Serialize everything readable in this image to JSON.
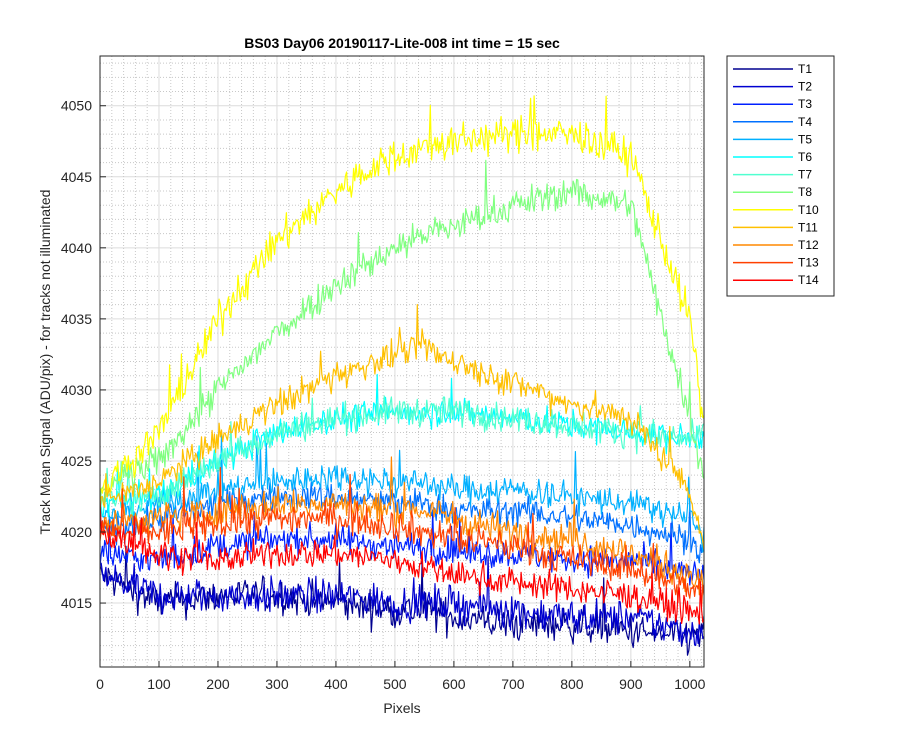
{
  "chart_data": {
    "type": "line",
    "title": "BS03 Day06 20190117-Lite-008 int time = 15 sec",
    "xlabel": "Pixels",
    "ylabel": "Track Mean Signal (ADU/pix) - for tracks not illuminated",
    "xlim": [
      0,
      1024
    ],
    "ylim": [
      4010.5,
      4053.5
    ],
    "xticks": [
      0,
      100,
      200,
      300,
      400,
      500,
      600,
      700,
      800,
      900,
      1000
    ],
    "yticks": [
      4015,
      4020,
      4025,
      4030,
      4035,
      4040,
      4045,
      4050
    ],
    "grid": "major and minor",
    "legend_position": "outside-right",
    "x": [
      0,
      100,
      200,
      300,
      400,
      500,
      550,
      600,
      700,
      800,
      900,
      1000,
      1024
    ],
    "series": [
      {
        "name": "T1",
        "color": "#00008f",
        "values": [
          4017,
          4015,
          4015.5,
          4015.5,
          4015,
          4014.5,
          4014.5,
          4014,
          4013.5,
          4013.5,
          4013,
          4012.5,
          4013
        ],
        "noise": 1.2
      },
      {
        "name": "T2",
        "color": "#0000d0",
        "values": [
          4017,
          4015.5,
          4015.5,
          4015.5,
          4015.5,
          4015,
          4015,
          4015,
          4014.5,
          4014,
          4014,
          4013,
          4013
        ],
        "noise": 1.2
      },
      {
        "name": "T3",
        "color": "#0020ff",
        "values": [
          4018.5,
          4018,
          4019,
          4019.5,
          4019.5,
          4019,
          4019,
          4018.5,
          4018.5,
          4018,
          4018,
          4017,
          4017
        ],
        "noise": 1.0
      },
      {
        "name": "T4",
        "color": "#0070ff",
        "values": [
          4020,
          4021,
          4022,
          4022.5,
          4022.5,
          4022,
          4022,
          4021.5,
          4021.5,
          4021,
          4020.5,
          4019.5,
          4018.5
        ],
        "noise": 1.0
      },
      {
        "name": "T5",
        "color": "#00b0ff",
        "values": [
          4021,
          4022,
          4023,
          4023.5,
          4024,
          4023.5,
          4023.5,
          4023,
          4023,
          4022.5,
          4022,
          4021,
          4019.5
        ],
        "noise": 1.0
      },
      {
        "name": "T6",
        "color": "#00ffff",
        "values": [
          4022,
          4022.5,
          4025,
          4027,
          4028,
          4028.5,
          4028.5,
          4028.5,
          4028,
          4027.5,
          4027,
          4026.5,
          4027
        ],
        "noise": 1.0
      },
      {
        "name": "T7",
        "color": "#50ffd0",
        "values": [
          4022,
          4022.5,
          4025,
          4027,
          4028,
          4028.5,
          4028.5,
          4028.5,
          4028,
          4027.5,
          4027,
          4026.5,
          4027
        ],
        "noise": 1.0
      },
      {
        "name": "T8",
        "color": "#80ff80",
        "values": [
          4023,
          4025,
          4030,
          4034,
          4037.5,
          4040,
          4041,
          4041.5,
          4043,
          4044,
          4043,
          4028,
          4024
        ],
        "noise": 1.1
      },
      {
        "name": "T10",
        "color": "#ffff00",
        "values": [
          4023,
          4027,
          4035,
          4040.5,
          4044,
          4046.5,
          4047,
          4047.5,
          4048,
          4048,
          4046.5,
          4035,
          4027.5
        ],
        "noise": 1.2
      },
      {
        "name": "T11",
        "color": "#ffc000",
        "values": [
          4022,
          4023.5,
          4026.5,
          4029,
          4031,
          4032.5,
          4033,
          4032,
          4030.5,
          4029,
          4028,
          4023,
          4019
        ],
        "noise": 1.0
      },
      {
        "name": "T12",
        "color": "#ff8800",
        "values": [
          4020.5,
          4021,
          4021.5,
          4022,
          4022,
          4021.5,
          4021.5,
          4021,
          4020,
          4019.5,
          4018.5,
          4017,
          4016
        ],
        "noise": 1.1
      },
      {
        "name": "T13",
        "color": "#ff4000",
        "values": [
          4020,
          4020,
          4020.5,
          4021,
          4021,
          4020.5,
          4020,
          4019.5,
          4019,
          4018,
          4017.5,
          4016,
          4015.5
        ],
        "noise": 1.1
      },
      {
        "name": "T14",
        "color": "#ff0000",
        "values": [
          4020,
          4018.5,
          4018,
          4018.5,
          4018.5,
          4018,
          4017.5,
          4017,
          4016.5,
          4016,
          4015.5,
          4014.5,
          4014
        ],
        "noise": 1.0
      }
    ]
  }
}
